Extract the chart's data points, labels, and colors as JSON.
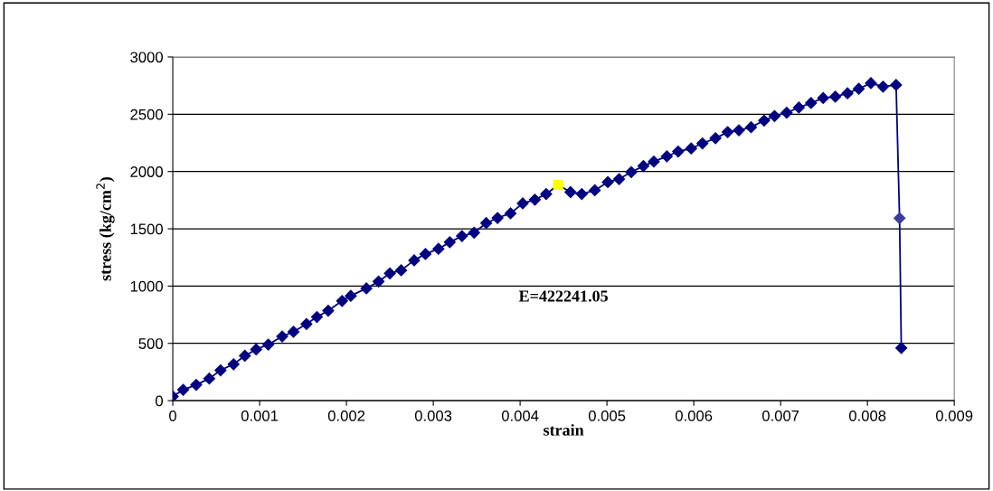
{
  "chart_data": {
    "type": "line",
    "xlabel": "strain",
    "ylabel": "stress (kg/cm$^{2}$)",
    "xlim": [
      0,
      0.009
    ],
    "xticks": [
      0,
      0.001,
      0.002,
      0.003,
      0.004,
      0.005,
      0.006,
      0.007,
      0.008,
      0.009
    ],
    "ylim": [
      0,
      3000
    ],
    "yticks": [
      0,
      500,
      1000,
      1500,
      2000,
      2500,
      3000
    ],
    "grid": "y",
    "legend": false,
    "marker": "diamond",
    "line_style": "solid",
    "annotations": [
      "E=422241.05"
    ],
    "series": [
      {
        "color": "#000080",
        "x": [
          0,
          0.00012,
          0.00027,
          0.00042,
          0.00055,
          0.0007,
          0.00083,
          0.00096,
          0.0011,
          0.00126,
          0.00139,
          0.00154,
          0.00166,
          0.00179,
          0.00195,
          0.00205,
          0.00223,
          0.00237,
          0.0025,
          0.00263,
          0.00278,
          0.00291,
          0.00306,
          0.00319,
          0.00333,
          0.00347,
          0.00361,
          0.00374,
          0.00389,
          0.00403,
          0.00417,
          0.0043,
          0.00444,
          0.00458,
          0.00471,
          0.00486,
          0.00501,
          0.00514,
          0.00528,
          0.00542,
          0.00554,
          0.00569,
          0.00582,
          0.00597,
          0.0061,
          0.00625,
          0.00639,
          0.00652,
          0.00666,
          0.00681,
          0.00693,
          0.00707,
          0.00721,
          0.00735,
          0.00749,
          0.00763,
          0.00777,
          0.0079,
          0.00804,
          0.00818,
          0.00833,
          0.00837,
          0.00839
        ],
        "values": [
          37,
          95,
          138,
          193,
          265,
          318,
          392,
          447,
          490,
          561,
          601,
          669,
          730,
          786,
          870,
          915,
          980,
          1040,
          1111,
          1138,
          1225,
          1280,
          1325,
          1383,
          1437,
          1466,
          1550,
          1595,
          1635,
          1722,
          1754,
          1804,
          1883,
          1820,
          1804,
          1836,
          1907,
          1934,
          1995,
          2048,
          2087,
          2132,
          2175,
          2201,
          2246,
          2291,
          2344,
          2360,
          2387,
          2445,
          2484,
          2513,
          2558,
          2598,
          2641,
          2653,
          2683,
          2722,
          2772,
          2741,
          2756,
          1593,
          460
        ],
        "colors": [
          "#000080",
          "#000080",
          "#000080",
          "#000080",
          "#000080",
          "#000080",
          "#000080",
          "#000080",
          "#000080",
          "#000080",
          "#000080",
          "#000080",
          "#000080",
          "#000080",
          "#000080",
          "#000080",
          "#000080",
          "#000080",
          "#000080",
          "#000080",
          "#000080",
          "#000080",
          "#000080",
          "#000080",
          "#000080",
          "#000080",
          "#000080",
          "#000080",
          "#000080",
          "#000080",
          "#000080",
          "#000080",
          "#ffff00",
          "#000080",
          "#000080",
          "#000080",
          "#000080",
          "#000080",
          "#000080",
          "#000080",
          "#000080",
          "#000080",
          "#000080",
          "#000080",
          "#000080",
          "#000080",
          "#000080",
          "#000080",
          "#000080",
          "#000080",
          "#000080",
          "#000080",
          "#000080",
          "#000080",
          "#000080",
          "#000080",
          "#000080",
          "#000080",
          "#000080",
          "#000080",
          "#000080",
          "#3c3c9c",
          "#000080"
        ]
      }
    ]
  }
}
